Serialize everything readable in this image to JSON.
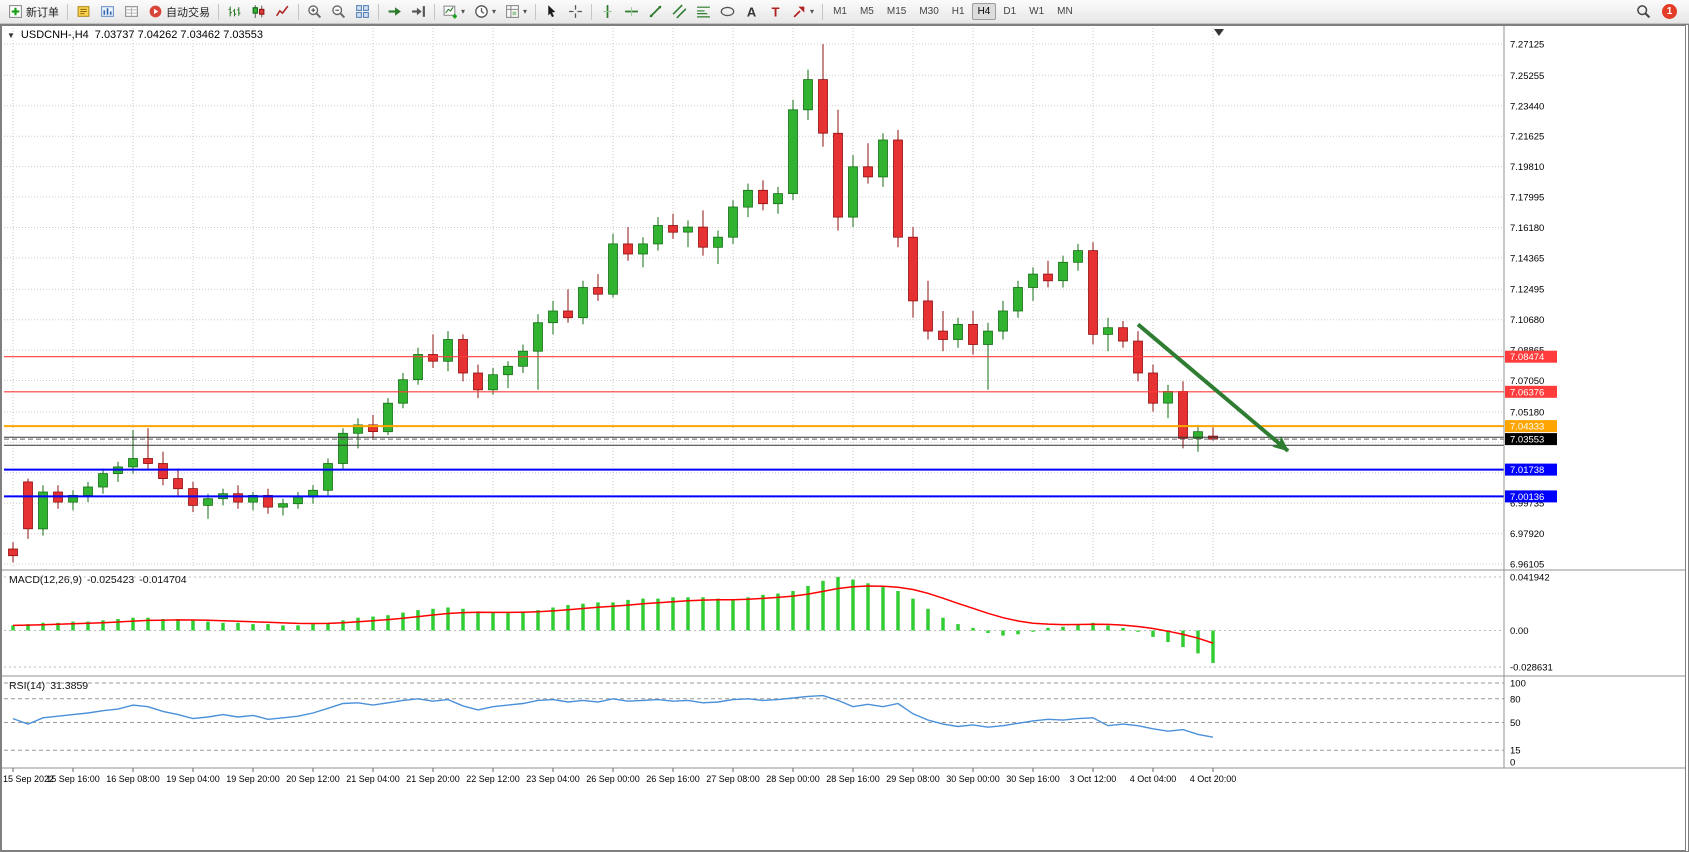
{
  "toolbar": {
    "items": [
      {
        "icon": "new-order",
        "label": "新订单"
      },
      {
        "sep": true
      },
      {
        "icon": "metaeditor"
      },
      {
        "icon": "market-watch"
      },
      {
        "icon": "data-window"
      },
      {
        "icon": "autotrade",
        "label": "自动交易"
      },
      {
        "sep": true
      },
      {
        "icon": "bar-chart"
      },
      {
        "icon": "candlestick-chart"
      },
      {
        "icon": "line-chart"
      },
      {
        "sep": true
      },
      {
        "icon": "zoom-in"
      },
      {
        "icon": "zoom-out"
      },
      {
        "icon": "tile-windows"
      },
      {
        "sep": true
      },
      {
        "icon": "auto-scroll"
      },
      {
        "icon": "chart-shift"
      },
      {
        "sep": true
      },
      {
        "icon": "new-chart",
        "caret": true
      },
      {
        "icon": "periods",
        "caret": true
      },
      {
        "icon": "templates",
        "caret": true
      },
      {
        "sep": true
      },
      {
        "icon": "cursor"
      },
      {
        "icon": "crosshair"
      },
      {
        "sep": true
      },
      {
        "icon": "vertical-line"
      },
      {
        "icon": "horizontal-line"
      },
      {
        "icon": "trendline"
      },
      {
        "icon": "channel"
      },
      {
        "icon": "fibonacci"
      },
      {
        "icon": "shapes"
      },
      {
        "icon": "text"
      },
      {
        "icon": "label"
      },
      {
        "icon": "arrows",
        "caret": true
      },
      {
        "sep": true
      }
    ],
    "timeframes": [
      "M1",
      "M5",
      "M15",
      "M30",
      "H1",
      "H4",
      "D1",
      "W1",
      "MN"
    ],
    "active_timeframe": "H4",
    "notification_count": "1"
  },
  "chart": {
    "expander_glyph": "▼",
    "title": "USDCNH-,H4",
    "ohlc_display": "7.03737 7.04262 7.03462 7.03553",
    "macd_name": "MACD(12,26,9)",
    "macd_main": "-0.025423",
    "macd_signal": "-0.014704",
    "rsi_name": "RSI(14)",
    "rsi_value": "31.3859"
  },
  "chart_data": {
    "type": "candlestick",
    "symbol": "USDCNH-",
    "timeframe": "H4",
    "ohlc_last": {
      "open": 7.03737,
      "high": 7.04262,
      "low": 7.03462,
      "close": 7.03553
    },
    "colors": {
      "up": "#31b331",
      "up_border": "#156e15",
      "down": "#e63232",
      "down_border": "#8f1010"
    },
    "y_ticks": [
      "7.27125",
      "7.25255",
      "7.23440",
      "7.21625",
      "7.19810",
      "7.17995",
      "7.16180",
      "7.14365",
      "7.12495",
      "7.10680",
      "7.08865",
      "7.07050",
      "7.05180",
      "7.03365",
      "7.01550",
      "6.99735",
      "6.97920",
      "6.96105"
    ],
    "x_labels": [
      "15 Sep 2022",
      "15 Sep 16:00",
      "16 Sep 08:00",
      "19 Sep 04:00",
      "19 Sep 20:00",
      "20 Sep 12:00",
      "21 Sep 04:00",
      "21 Sep 20:00",
      "22 Sep 12:00",
      "23 Sep 04:00",
      "26 Sep 00:00",
      "26 Sep 16:00",
      "27 Sep 08:00",
      "28 Sep 00:00",
      "28 Sep 16:00",
      "29 Sep 08:00",
      "30 Sep 00:00",
      "30 Sep 16:00",
      "3 Oct 12:00",
      "4 Oct 04:00",
      "4 Oct 20:00"
    ],
    "candles": [
      [
        6.97,
        6.974,
        6.962,
        6.966
      ],
      [
        7.01,
        7.012,
        6.976,
        6.982
      ],
      [
        6.982,
        7.008,
        6.978,
        7.004
      ],
      [
        7.004,
        7.008,
        6.994,
        6.998
      ],
      [
        6.998,
        7.005,
        6.993,
        7.002
      ],
      [
        7.002,
        7.01,
        6.998,
        7.007
      ],
      [
        7.007,
        7.018,
        7.003,
        7.015
      ],
      [
        7.015,
        7.022,
        7.01,
        7.019
      ],
      [
        7.019,
        7.041,
        7.015,
        7.024
      ],
      [
        7.024,
        7.042,
        7.018,
        7.021
      ],
      [
        7.021,
        7.028,
        7.008,
        7.012
      ],
      [
        7.012,
        7.018,
        7.002,
        7.006
      ],
      [
        7.006,
        7.01,
        6.992,
        6.996
      ],
      [
        6.996,
        7.003,
        6.988,
        7.0
      ],
      [
        7.0,
        7.006,
        6.996,
        7.003
      ],
      [
        7.003,
        7.008,
        6.994,
        6.998
      ],
      [
        6.998,
        7.004,
        6.993,
        7.002
      ],
      [
        7.002,
        7.006,
        6.991,
        6.995
      ],
      [
        6.995,
        7.0,
        6.99,
        6.997
      ],
      [
        6.997,
        7.004,
        6.994,
        7.001
      ],
      [
        7.001,
        7.008,
        6.997,
        7.005
      ],
      [
        7.005,
        7.024,
        7.002,
        7.021
      ],
      [
        7.021,
        7.042,
        7.018,
        7.039
      ],
      [
        7.039,
        7.048,
        7.03,
        7.044
      ],
      [
        7.044,
        7.05,
        7.036,
        7.04
      ],
      [
        7.04,
        7.06,
        7.038,
        7.057
      ],
      [
        7.057,
        7.075,
        7.054,
        7.071
      ],
      [
        7.071,
        7.09,
        7.068,
        7.086
      ],
      [
        7.086,
        7.098,
        7.078,
        7.082
      ],
      [
        7.082,
        7.1,
        7.076,
        7.095
      ],
      [
        7.095,
        7.098,
        7.07,
        7.075
      ],
      [
        7.075,
        7.08,
        7.06,
        7.065
      ],
      [
        7.065,
        7.078,
        7.062,
        7.074
      ],
      [
        7.074,
        7.082,
        7.066,
        7.079
      ],
      [
        7.079,
        7.092,
        7.075,
        7.088
      ],
      [
        7.088,
        7.11,
        7.065,
        7.105
      ],
      [
        7.105,
        7.118,
        7.098,
        7.112
      ],
      [
        7.112,
        7.125,
        7.105,
        7.108
      ],
      [
        7.108,
        7.13,
        7.104,
        7.126
      ],
      [
        7.126,
        7.134,
        7.118,
        7.122
      ],
      [
        7.122,
        7.158,
        7.12,
        7.152
      ],
      [
        7.152,
        7.162,
        7.142,
        7.146
      ],
      [
        7.146,
        7.156,
        7.138,
        7.152
      ],
      [
        7.152,
        7.168,
        7.148,
        7.163
      ],
      [
        7.163,
        7.17,
        7.155,
        7.159
      ],
      [
        7.159,
        7.166,
        7.15,
        7.162
      ],
      [
        7.162,
        7.172,
        7.145,
        7.15
      ],
      [
        7.15,
        7.16,
        7.14,
        7.156
      ],
      [
        7.156,
        7.178,
        7.152,
        7.174
      ],
      [
        7.174,
        7.188,
        7.168,
        7.184
      ],
      [
        7.184,
        7.19,
        7.172,
        7.176
      ],
      [
        7.176,
        7.186,
        7.17,
        7.182
      ],
      [
        7.182,
        7.238,
        7.178,
        7.232
      ],
      [
        7.232,
        7.256,
        7.226,
        7.25
      ],
      [
        7.25,
        7.2712,
        7.21,
        7.218
      ],
      [
        7.218,
        7.232,
        7.16,
        7.168
      ],
      [
        7.168,
        7.205,
        7.162,
        7.198
      ],
      [
        7.198,
        7.212,
        7.188,
        7.192
      ],
      [
        7.192,
        7.218,
        7.186,
        7.214
      ],
      [
        7.214,
        7.22,
        7.15,
        7.156
      ],
      [
        7.156,
        7.162,
        7.108,
        7.118
      ],
      [
        7.118,
        7.13,
        7.095,
        7.1
      ],
      [
        7.1,
        7.112,
        7.088,
        7.095
      ],
      [
        7.095,
        7.108,
        7.09,
        7.104
      ],
      [
        7.104,
        7.112,
        7.086,
        7.092
      ],
      [
        7.092,
        7.105,
        7.065,
        7.1
      ],
      [
        7.1,
        7.118,
        7.095,
        7.112
      ],
      [
        7.112,
        7.13,
        7.108,
        7.126
      ],
      [
        7.126,
        7.138,
        7.118,
        7.134
      ],
      [
        7.134,
        7.142,
        7.126,
        7.13
      ],
      [
        7.13,
        7.145,
        7.126,
        7.141
      ],
      [
        7.141,
        7.152,
        7.136,
        7.148
      ],
      [
        7.148,
        7.153,
        7.092,
        7.098
      ],
      [
        7.098,
        7.108,
        7.088,
        7.102
      ],
      [
        7.102,
        7.106,
        7.09,
        7.094
      ],
      [
        7.094,
        7.1,
        7.07,
        7.075
      ],
      [
        7.075,
        7.08,
        7.052,
        7.057
      ],
      [
        7.057,
        7.068,
        7.048,
        7.064
      ],
      [
        7.064,
        7.07,
        7.03,
        7.036
      ],
      [
        7.036,
        7.044,
        7.028,
        7.04
      ],
      [
        7.03737,
        7.04262,
        7.03462,
        7.03553
      ]
    ],
    "hlines": [
      {
        "price": 7.08474,
        "color": "#ff3b3b",
        "width": 1.2,
        "label": "7.08474",
        "badge": "#ff3b3b"
      },
      {
        "price": 7.06376,
        "color": "#ff3b3b",
        "width": 1.2,
        "label": "7.06376",
        "badge": "#ff3b3b"
      },
      {
        "price": 7.04333,
        "color": "#ffa500",
        "width": 2,
        "label": "7.04333",
        "badge": "#ffa500"
      },
      {
        "price": 7.0367,
        "color": "#333333",
        "width": 1
      },
      {
        "price": 7.0319,
        "color": "#333333",
        "width": 1
      },
      {
        "price": 7.01738,
        "color": "#0000ff",
        "width": 2,
        "label": "7.01738",
        "badge": "#0000ff"
      },
      {
        "price": 7.00136,
        "color": "#0000ff",
        "width": 2,
        "label": "7.00136",
        "badge": "#0000ff"
      }
    ],
    "bid": {
      "price": 7.03553,
      "label": "7.03553",
      "badge": "#000000"
    },
    "arrow": {
      "from_bar": 75,
      "from_price": 7.104,
      "to_bar": 85,
      "to_price": 7.0285,
      "color": "#2f7d32"
    },
    "macd": {
      "name": "MACD(12,26,9)",
      "main_value": "-0.025423",
      "signal_value": "-0.014704",
      "axis": [
        "0.041942",
        "0.00",
        "-0.028631"
      ],
      "hist": [
        0.004,
        0.005,
        0.006,
        0.006,
        0.007,
        0.007,
        0.008,
        0.009,
        0.01,
        0.01,
        0.009,
        0.009,
        0.008,
        0.007,
        0.006,
        0.006,
        0.005,
        0.005,
        0.004,
        0.004,
        0.005,
        0.006,
        0.008,
        0.01,
        0.011,
        0.012,
        0.014,
        0.016,
        0.017,
        0.018,
        0.017,
        0.015,
        0.014,
        0.014,
        0.015,
        0.016,
        0.018,
        0.02,
        0.021,
        0.022,
        0.022,
        0.024,
        0.025,
        0.025,
        0.026,
        0.026,
        0.026,
        0.025,
        0.024,
        0.026,
        0.028,
        0.029,
        0.031,
        0.035,
        0.039,
        0.042,
        0.04,
        0.037,
        0.034,
        0.031,
        0.025,
        0.017,
        0.01,
        0.005,
        0.002,
        -0.002,
        -0.004,
        -0.003,
        -0.001,
        0.002,
        0.003,
        0.005,
        0.006,
        0.004,
        0.002,
        -0.001,
        -0.005,
        -0.009,
        -0.013,
        -0.018,
        -0.025423
      ]
    },
    "rsi": {
      "name": "RSI(14)",
      "value": "31.3859",
      "levels": [
        100,
        80,
        50,
        15,
        0
      ],
      "values": [
        55,
        48,
        56,
        58,
        60,
        62,
        65,
        67,
        72,
        70,
        64,
        60,
        55,
        57,
        60,
        57,
        59,
        54,
        56,
        58,
        62,
        68,
        74,
        75,
        72,
        75,
        78,
        80,
        77,
        79,
        71,
        66,
        70,
        72,
        74,
        78,
        79,
        76,
        78,
        76,
        80,
        77,
        78,
        79,
        77,
        78,
        75,
        76,
        79,
        80,
        78,
        79,
        81,
        83,
        84,
        78,
        70,
        73,
        70,
        74,
        61,
        53,
        48,
        45,
        47,
        44,
        46,
        49,
        52,
        54,
        53,
        55,
        56,
        46,
        48,
        46,
        42,
        39,
        41,
        35,
        31.3859
      ]
    }
  }
}
